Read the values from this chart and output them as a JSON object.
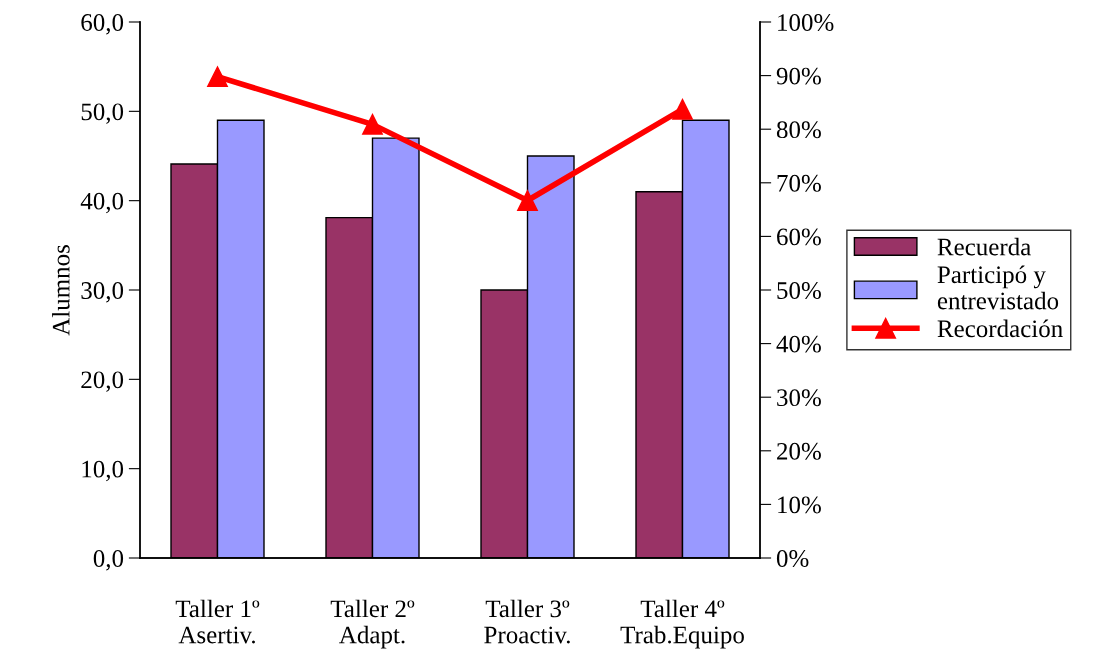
{
  "chart_data": {
    "type": "bar",
    "ylabel": "Alumnos",
    "categories": [
      "Taller 1º\nAsertiv.",
      "Taller 2º\nAdapt.",
      "Taller 3º\nProactiv.",
      "Taller 4º\nTrab.Equipo"
    ],
    "series": [
      {
        "name": "Recuerda",
        "color": "#993366",
        "values": [
          44.1,
          38.1,
          30.0,
          41.0
        ]
      },
      {
        "name": "Participó y\nentrevistado",
        "color": "#9999ff",
        "values": [
          49.0,
          47.0,
          45.0,
          49.0
        ]
      },
      {
        "name": "Recordación",
        "type": "line",
        "axis": "y2",
        "color": "#ff0000",
        "marker": "triangle",
        "line_style": "solid",
        "values": [
          89.8,
          80.9,
          66.7,
          83.7
        ]
      }
    ],
    "ylim": [
      0,
      60
    ],
    "yticks": [
      {
        "value": 0,
        "label": "0,0"
      },
      {
        "value": 10,
        "label": "10,0"
      },
      {
        "value": 20,
        "label": "20,0"
      },
      {
        "value": 30,
        "label": "30,0"
      },
      {
        "value": 40,
        "label": "40,0"
      },
      {
        "value": 50,
        "label": "50,0"
      },
      {
        "value": 60,
        "label": "60,0"
      }
    ],
    "y2lim": [
      0,
      100
    ],
    "y2ticks": [
      {
        "value": 0,
        "label": "0%"
      },
      {
        "value": 10,
        "label": "10%"
      },
      {
        "value": 20,
        "label": "20%"
      },
      {
        "value": 30,
        "label": "30%"
      },
      {
        "value": 40,
        "label": "40%"
      },
      {
        "value": 50,
        "label": "50%"
      },
      {
        "value": 60,
        "label": "60%"
      },
      {
        "value": 70,
        "label": "70%"
      },
      {
        "value": 80,
        "label": "80%"
      },
      {
        "value": 90,
        "label": "90%"
      },
      {
        "value": 100,
        "label": "100%"
      }
    ],
    "grid": false,
    "legend": "right"
  }
}
